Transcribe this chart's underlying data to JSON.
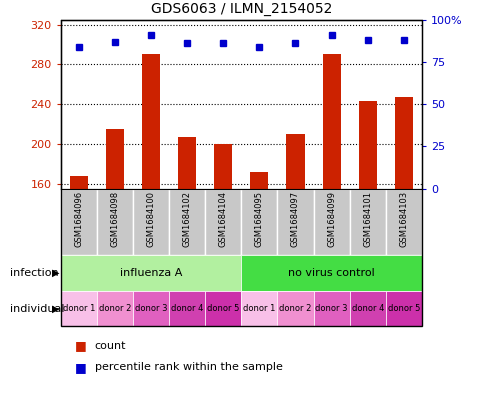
{
  "title": "GDS6063 / ILMN_2154052",
  "samples": [
    "GSM1684096",
    "GSM1684098",
    "GSM1684100",
    "GSM1684102",
    "GSM1684104",
    "GSM1684095",
    "GSM1684097",
    "GSM1684099",
    "GSM1684101",
    "GSM1684103"
  ],
  "counts": [
    168,
    215,
    290,
    207,
    200,
    172,
    210,
    290,
    243,
    247
  ],
  "percentiles": [
    84,
    87,
    91,
    86,
    86,
    84,
    86,
    91,
    88,
    88
  ],
  "ylim_left": [
    155,
    325
  ],
  "ylim_right": [
    0,
    100
  ],
  "yticks_left": [
    160,
    200,
    240,
    280,
    320
  ],
  "yticks_right": [
    0,
    25,
    50,
    75,
    100
  ],
  "infection_groups": [
    {
      "label": "influenza A",
      "start": 0,
      "end": 5,
      "color": "#b2f0a0"
    },
    {
      "label": "no virus control",
      "start": 5,
      "end": 10,
      "color": "#44dd44"
    }
  ],
  "individual_colors": [
    "#f8c0e8",
    "#f090d0",
    "#e060c0",
    "#d040b0",
    "#cc30aa",
    "#f8c0e8",
    "#f090d0",
    "#e060c0",
    "#d040b0",
    "#cc30aa"
  ],
  "bar_color": "#cc2200",
  "dot_color": "#0000cc",
  "bar_width": 0.5,
  "left_axis_color": "#cc2200",
  "right_axis_color": "#0000cc",
  "sample_bg_color": "#c8c8c8",
  "legend_items": [
    {
      "label": "count",
      "color": "#cc2200"
    },
    {
      "label": "percentile rank within the sample",
      "color": "#0000cc"
    }
  ],
  "infection_label": "infection",
  "individual_label": "individual"
}
